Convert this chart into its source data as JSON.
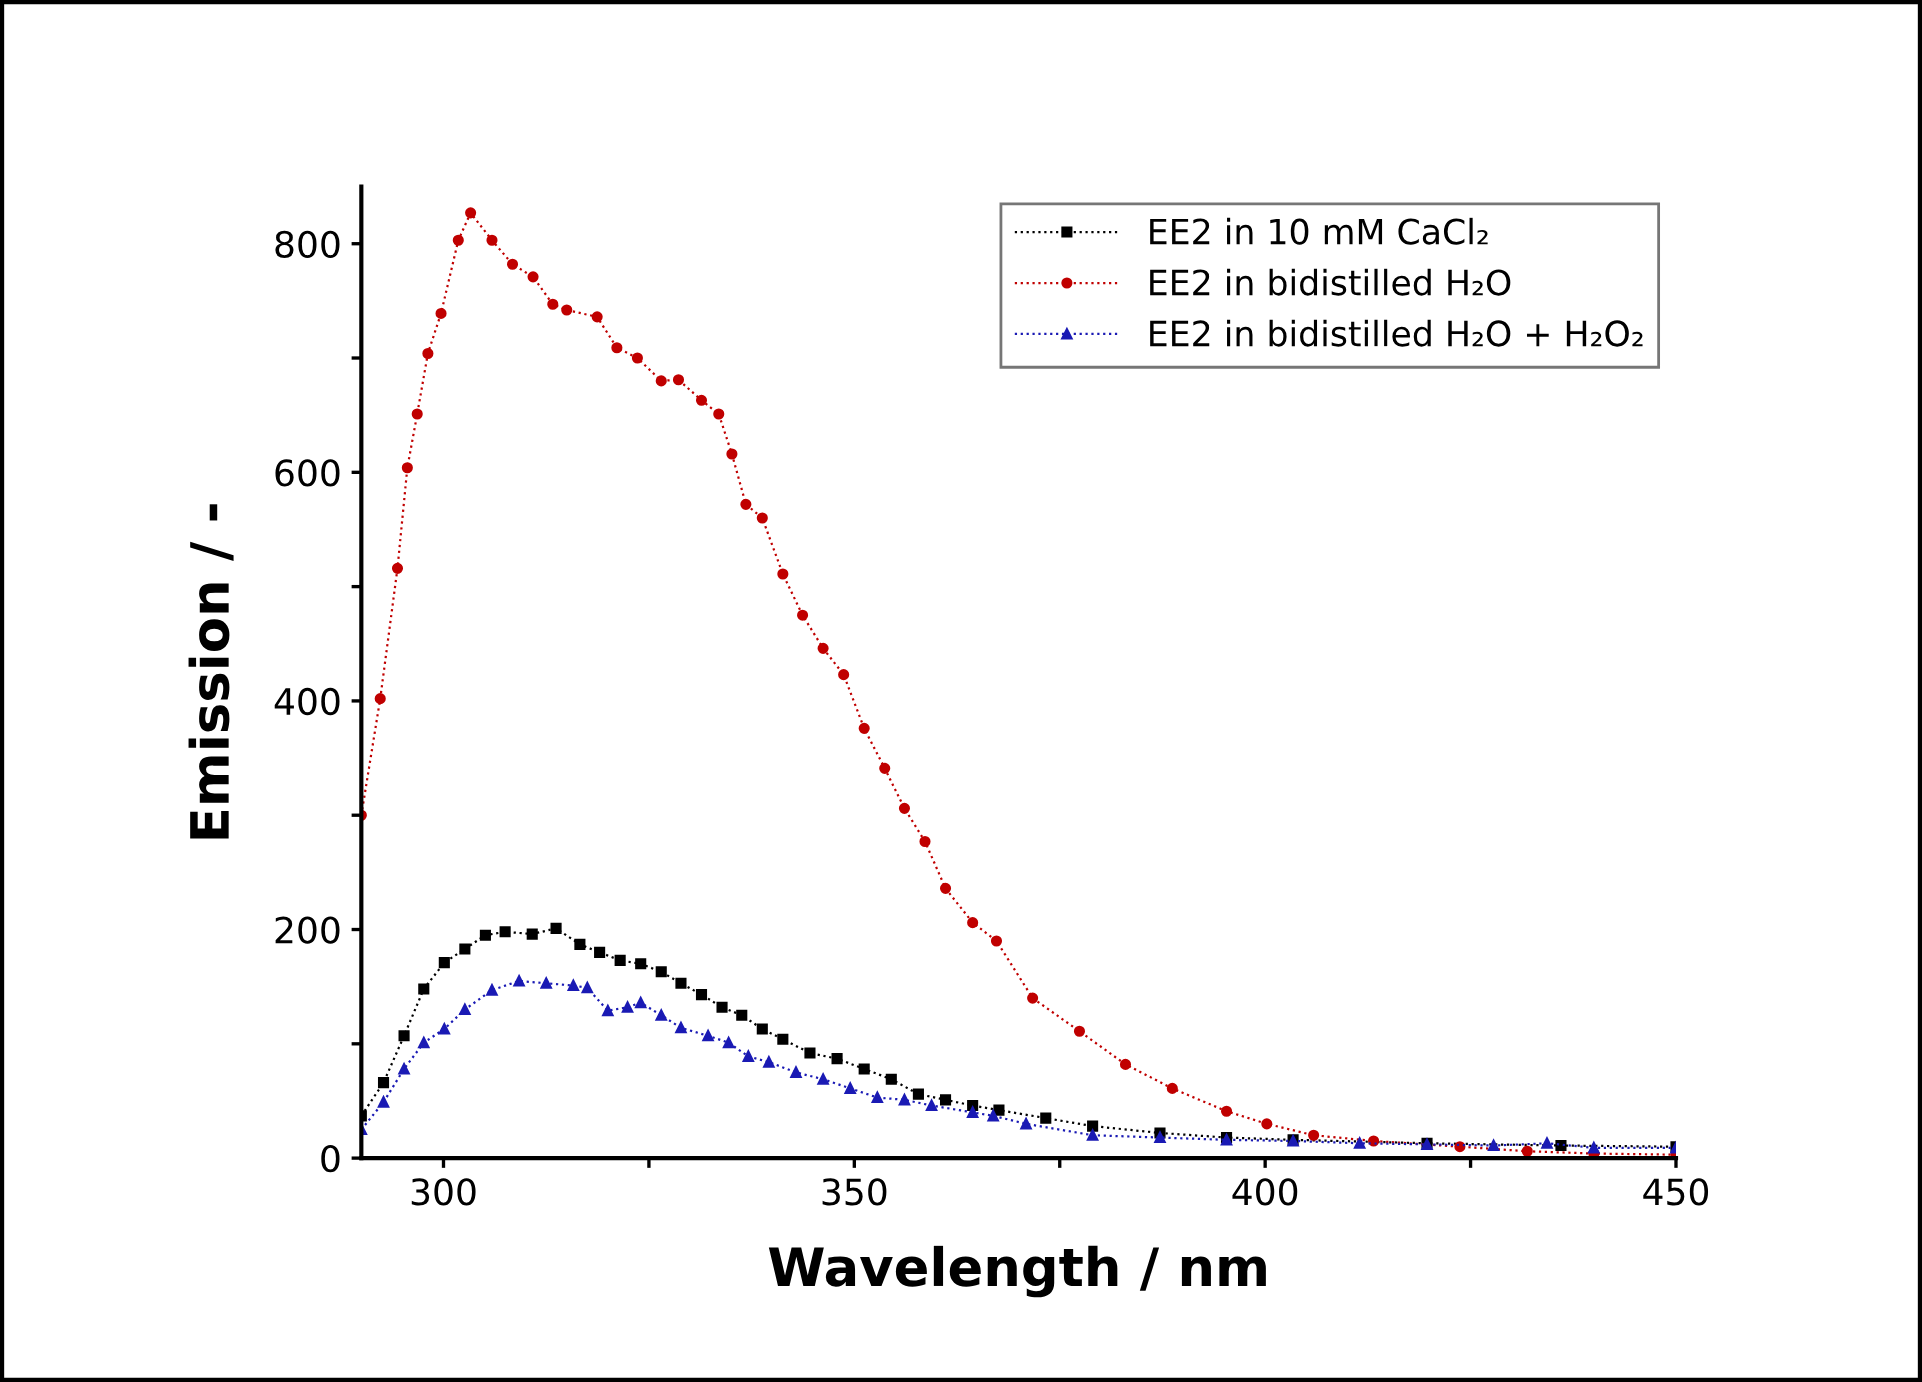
{
  "chart_data": {
    "type": "line",
    "xlabel": "Wavelength / nm",
    "ylabel": "Emission / -",
    "xlim": [
      290,
      450
    ],
    "ylim": [
      0,
      850
    ],
    "xticks": [
      300,
      {
        "value": 325,
        "label": null
      },
      350,
      {
        "value": 375,
        "label": null
      },
      400,
      {
        "value": 425,
        "label": null
      },
      450
    ],
    "yticks": [
      0,
      {
        "value": 100,
        "label": null
      },
      200,
      {
        "value": 300,
        "label": null
      },
      400,
      {
        "value": 500,
        "label": null
      },
      600,
      {
        "value": 700,
        "label": null
      },
      800
    ],
    "grid": false,
    "legend": "top right",
    "line_style": "dotted",
    "series": [
      {
        "name": "EE2 in 10 mM CaCl₂",
        "color": "#000000",
        "marker": "square",
        "x": [
          290,
          292.7,
          295.2,
          297.6,
          300.1,
          302.6,
          305.1,
          307.5,
          310.8,
          313.7,
          316.6,
          319,
          321.5,
          324,
          326.5,
          328.9,
          331.4,
          333.9,
          336.3,
          338.8,
          341.3,
          344.6,
          347.9,
          351.2,
          354.5,
          357.8,
          361.1,
          364.4,
          367.6,
          373.3,
          379,
          387.2,
          395.3,
          403.4,
          419.7,
          436,
          450
        ],
        "values": [
          37,
          66,
          107,
          148,
          171,
          183,
          195,
          198,
          196,
          201,
          187,
          180,
          173,
          170,
          163,
          153,
          143,
          132,
          125,
          113,
          104,
          92,
          87,
          78,
          69,
          56,
          51,
          46,
          42,
          35,
          28,
          22,
          18,
          16,
          13,
          11,
          10
        ]
      },
      {
        "name": "EE2 in bidistilled H₂O",
        "color": "#c00000",
        "marker": "circle",
        "x": [
          290,
          292.3,
          294.4,
          295.6,
          296.8,
          298.1,
          299.7,
          301.8,
          303.3,
          305.9,
          308.4,
          310.9,
          313.3,
          315,
          318.7,
          321.1,
          323.6,
          326.5,
          328.6,
          331.4,
          333.5,
          335.1,
          336.8,
          338.8,
          341.3,
          343.7,
          346.2,
          348.7,
          351.2,
          353.7,
          356.1,
          358.6,
          361.1,
          364.4,
          367.3,
          371.7,
          377.4,
          383,
          388.7,
          395.3,
          400.2,
          405.9,
          413.2,
          423.7,
          431.9,
          440,
          450
        ],
        "values": [
          300,
          402,
          516,
          604,
          651,
          704,
          739,
          803,
          827,
          803,
          782,
          771,
          747,
          742,
          736,
          709,
          700,
          680,
          681,
          663,
          651,
          616,
          572,
          560,
          511,
          475,
          446,
          423,
          376,
          341,
          306,
          277,
          236,
          206,
          190,
          140,
          111,
          82,
          61,
          41,
          30,
          20,
          15,
          10,
          6,
          4,
          3
        ]
      },
      {
        "name": "EE2 in bidistilled H₂O + H₂O₂",
        "color": "#1a1ab4",
        "marker": "triangle",
        "x": [
          290,
          292.7,
          295.2,
          297.6,
          300.1,
          302.6,
          305.9,
          309.2,
          312.5,
          315.8,
          317.5,
          320,
          322.4,
          324,
          326.5,
          328.9,
          332.2,
          334.7,
          337.1,
          339.6,
          342.9,
          346.2,
          349.5,
          352.8,
          356.1,
          359.4,
          364.4,
          366.9,
          370.9,
          379,
          387.2,
          395.3,
          403.4,
          411.5,
          419.7,
          427.8,
          434.3,
          440,
          450
        ],
        "values": [
          25,
          49,
          78,
          101,
          113,
          130,
          147,
          155,
          153,
          151,
          149,
          129,
          132,
          136,
          125,
          114,
          107,
          101,
          89,
          84,
          75,
          69,
          61,
          53,
          51,
          46,
          40,
          37,
          30,
          20,
          18,
          16,
          15,
          13,
          12,
          11,
          13,
          9,
          9
        ]
      }
    ]
  }
}
